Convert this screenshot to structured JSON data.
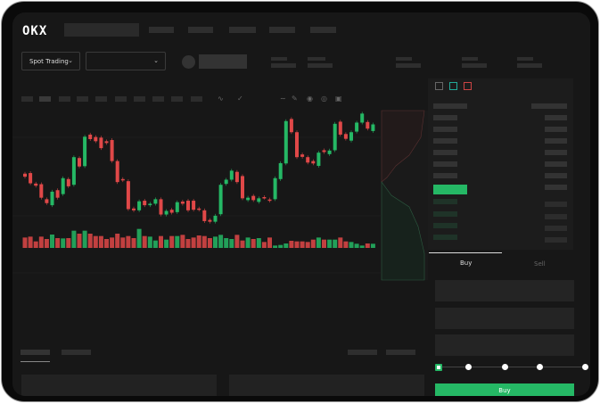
{
  "header": {
    "logo": "OKX"
  },
  "toolbar": {
    "market_select": "Spot Trading",
    "pair_select": ""
  },
  "order_panel": {
    "tabs": [
      "Buy",
      "Sell"
    ],
    "active_tab": "Buy",
    "leverage_steps": 5,
    "active_step": 0
  },
  "colors": {
    "up": "#25b865",
    "down": "#e04848",
    "background": "#171717",
    "accent": "#25b865"
  },
  "icons": [
    "chevron-down-icon",
    "orderbook-both-icon",
    "orderbook-bids-icon",
    "orderbook-asks-icon",
    "indicator-icon",
    "draw-icon",
    "settings-icon"
  ],
  "chart_data": {
    "type": "candlestick",
    "candles": [
      [
        170,
        160
      ],
      [
        172,
        138
      ],
      [
        137,
        130
      ],
      [
        135,
        90
      ],
      [
        85,
        72
      ],
      [
        65,
        110
      ],
      [
        115,
        90
      ],
      [
        102,
        155
      ],
      [
        152,
        128
      ],
      [
        133,
        225
      ],
      [
        222,
        194
      ],
      [
        195,
        293
      ],
      [
        300,
        285
      ],
      [
        292,
        278
      ],
      [
        290,
        255
      ],
      [
        278,
        272
      ],
      [
        282,
        212
      ],
      [
        212,
        142
      ],
      [
        152,
        148
      ],
      [
        145,
        52
      ],
      [
        54,
        48
      ],
      [
        48,
        78
      ],
      [
        80,
        65
      ],
      [
        65,
        70
      ],
      [
        70,
        85
      ],
      [
        85,
        34
      ],
      [
        34,
        46
      ],
      [
        50,
        40
      ],
      [
        42,
        75
      ],
      [
        77,
        70
      ],
      [
        80,
        48
      ],
      [
        80,
        50
      ],
      [
        54,
        50
      ],
      [
        48,
        12
      ],
      [
        16,
        10
      ],
      [
        10,
        30
      ],
      [
        35,
        133
      ],
      [
        136,
        150
      ],
      [
        150,
        180
      ],
      [
        176,
        142
      ],
      [
        162,
        88
      ],
      [
        82,
        90
      ],
      [
        96,
        82
      ],
      [
        76,
        88
      ],
      [
        92,
        90
      ],
      [
        84,
        80
      ],
      [
        85,
        155
      ],
      [
        152,
        205
      ],
      [
        204,
        345
      ],
      [
        352,
        308
      ],
      [
        308,
        225
      ],
      [
        234,
        226
      ],
      [
        225,
        207
      ],
      [
        212,
        204
      ],
      [
        196,
        240
      ],
      [
        248,
        242
      ],
      [
        235,
        247
      ],
      [
        248,
        336
      ],
      [
        343,
        300
      ],
      [
        302,
        286
      ],
      [
        280,
        308
      ],
      [
        310,
        340
      ],
      [
        340,
        370
      ],
      [
        342,
        320
      ],
      [
        312,
        334
      ]
    ],
    "volume": [
      35,
      38,
      22,
      38,
      30,
      45,
      33,
      32,
      33,
      58,
      48,
      58,
      48,
      40,
      40,
      30,
      35,
      48,
      35,
      40,
      33,
      64,
      40,
      38,
      25,
      40,
      28,
      40,
      40,
      44,
      30,
      35,
      42,
      40,
      33,
      38,
      44,
      33,
      30,
      44,
      25,
      35,
      30,
      33,
      20,
      35,
      8,
      10,
      15,
      24,
      22,
      22,
      20,
      28,
      35,
      28,
      28,
      28,
      35,
      22,
      20,
      14,
      8,
      15,
      14
    ]
  }
}
